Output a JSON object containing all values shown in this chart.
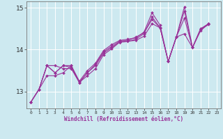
{
  "xlabel": "Windchill (Refroidissement éolien,°C)",
  "bg_color": "#cde9f0",
  "line_color": "#993399",
  "markersize": 2.0,
  "linewidth": 0.8,
  "xlim": [
    -0.5,
    23.5
  ],
  "ylim": [
    12.6,
    15.15
  ],
  "yticks": [
    13,
    14,
    15
  ],
  "xticks": [
    0,
    1,
    2,
    3,
    4,
    5,
    6,
    7,
    8,
    9,
    10,
    11,
    12,
    13,
    14,
    15,
    16,
    17,
    18,
    19,
    20,
    21,
    22,
    23
  ],
  "series": [
    [
      [
        0,
        12.75
      ],
      [
        1,
        13.05
      ],
      [
        2,
        13.62
      ],
      [
        3,
        13.45
      ],
      [
        4,
        13.62
      ],
      [
        5,
        13.58
      ],
      [
        6,
        13.22
      ],
      [
        7,
        13.45
      ],
      [
        8,
        13.62
      ],
      [
        9,
        13.92
      ],
      [
        10,
        14.05
      ],
      [
        11,
        14.18
      ],
      [
        12,
        14.2
      ],
      [
        13,
        14.22
      ],
      [
        14,
        14.32
      ],
      [
        15,
        14.62
      ],
      [
        16,
        14.52
      ],
      [
        17,
        13.72
      ],
      [
        18,
        14.3
      ],
      [
        19,
        14.38
      ],
      [
        20,
        14.05
      ],
      [
        21,
        14.48
      ],
      [
        22,
        14.6
      ]
    ],
    [
      [
        0,
        12.75
      ],
      [
        1,
        13.05
      ],
      [
        2,
        13.38
      ],
      [
        3,
        13.38
      ],
      [
        4,
        13.45
      ],
      [
        5,
        13.62
      ],
      [
        6,
        13.22
      ],
      [
        7,
        13.38
      ],
      [
        8,
        13.55
      ],
      [
        9,
        13.88
      ],
      [
        10,
        14.02
      ],
      [
        11,
        14.18
      ],
      [
        12,
        14.2
      ],
      [
        13,
        14.25
      ],
      [
        14,
        14.38
      ],
      [
        15,
        14.78
      ],
      [
        16,
        14.52
      ],
      [
        17,
        13.72
      ],
      [
        18,
        14.3
      ],
      [
        19,
        14.92
      ],
      [
        20,
        14.05
      ],
      [
        21,
        14.45
      ],
      [
        22,
        14.62
      ]
    ],
    [
      [
        0,
        12.75
      ],
      [
        1,
        13.05
      ],
      [
        2,
        13.62
      ],
      [
        3,
        13.45
      ],
      [
        4,
        13.62
      ],
      [
        5,
        13.62
      ],
      [
        6,
        13.25
      ],
      [
        7,
        13.5
      ],
      [
        8,
        13.68
      ],
      [
        9,
        13.98
      ],
      [
        10,
        14.12
      ],
      [
        11,
        14.22
      ],
      [
        12,
        14.25
      ],
      [
        13,
        14.28
      ],
      [
        14,
        14.42
      ],
      [
        15,
        14.88
      ],
      [
        16,
        14.58
      ],
      [
        17,
        13.72
      ],
      [
        18,
        14.3
      ],
      [
        19,
        15.02
      ],
      [
        20,
        14.05
      ],
      [
        21,
        14.48
      ],
      [
        22,
        14.62
      ]
    ],
    [
      [
        0,
        12.75
      ],
      [
        1,
        13.05
      ],
      [
        2,
        13.62
      ],
      [
        3,
        13.62
      ],
      [
        4,
        13.55
      ],
      [
        5,
        13.55
      ],
      [
        6,
        13.22
      ],
      [
        7,
        13.45
      ],
      [
        8,
        13.65
      ],
      [
        9,
        13.95
      ],
      [
        10,
        14.08
      ],
      [
        11,
        14.2
      ],
      [
        12,
        14.22
      ],
      [
        13,
        14.3
      ],
      [
        14,
        14.4
      ],
      [
        15,
        14.72
      ],
      [
        16,
        14.52
      ],
      [
        17,
        13.72
      ],
      [
        18,
        14.3
      ],
      [
        19,
        14.75
      ],
      [
        20,
        14.05
      ],
      [
        21,
        14.5
      ],
      [
        22,
        14.62
      ]
    ]
  ]
}
